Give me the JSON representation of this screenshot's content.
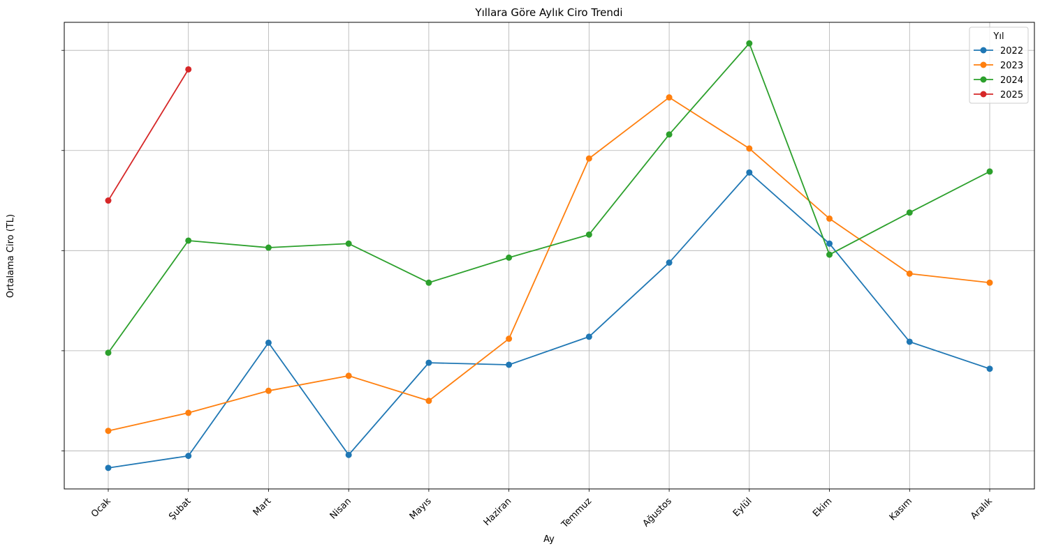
{
  "chart_data": {
    "type": "line",
    "title": "Yıllara Göre Aylık Ciro Trendi",
    "xlabel": "Ay",
    "ylabel": "Ortalama Ciro (TL)",
    "categories": [
      "Ocak",
      "Şubat",
      "Mart",
      "Nisan",
      "Mayıs",
      "Haziran",
      "Temmuz",
      "Ağustos",
      "Eylül",
      "Ekim",
      "Kasım",
      "Aralık"
    ],
    "y_tick_labels": [
      "",
      "",
      "",
      "",
      ""
    ],
    "y_ticks": [
      1,
      2,
      3,
      4,
      5
    ],
    "ylim": [
      0.62,
      5.28
    ],
    "grid": true,
    "legend": {
      "title": "Yıl",
      "placement": "top-right"
    },
    "marker": "circle",
    "series": [
      {
        "name": "2022",
        "color": "#1f77b4",
        "values": [
          0.83,
          0.95,
          2.08,
          0.96,
          1.88,
          1.86,
          2.14,
          2.88,
          3.78,
          3.07,
          2.09,
          1.82
        ]
      },
      {
        "name": "2023",
        "color": "#ff7f0e",
        "values": [
          1.2,
          1.38,
          1.6,
          1.75,
          1.5,
          2.12,
          3.92,
          4.53,
          4.02,
          3.32,
          2.77,
          2.68
        ]
      },
      {
        "name": "2024",
        "color": "#2ca02c",
        "values": [
          1.98,
          3.1,
          3.03,
          3.07,
          2.68,
          2.93,
          3.16,
          4.16,
          5.07,
          2.96,
          3.38,
          3.79
        ]
      },
      {
        "name": "2025",
        "color": "#d62728",
        "values": [
          3.5,
          4.81,
          null,
          null,
          null,
          null,
          null,
          null,
          null,
          null,
          null,
          null
        ]
      }
    ]
  }
}
